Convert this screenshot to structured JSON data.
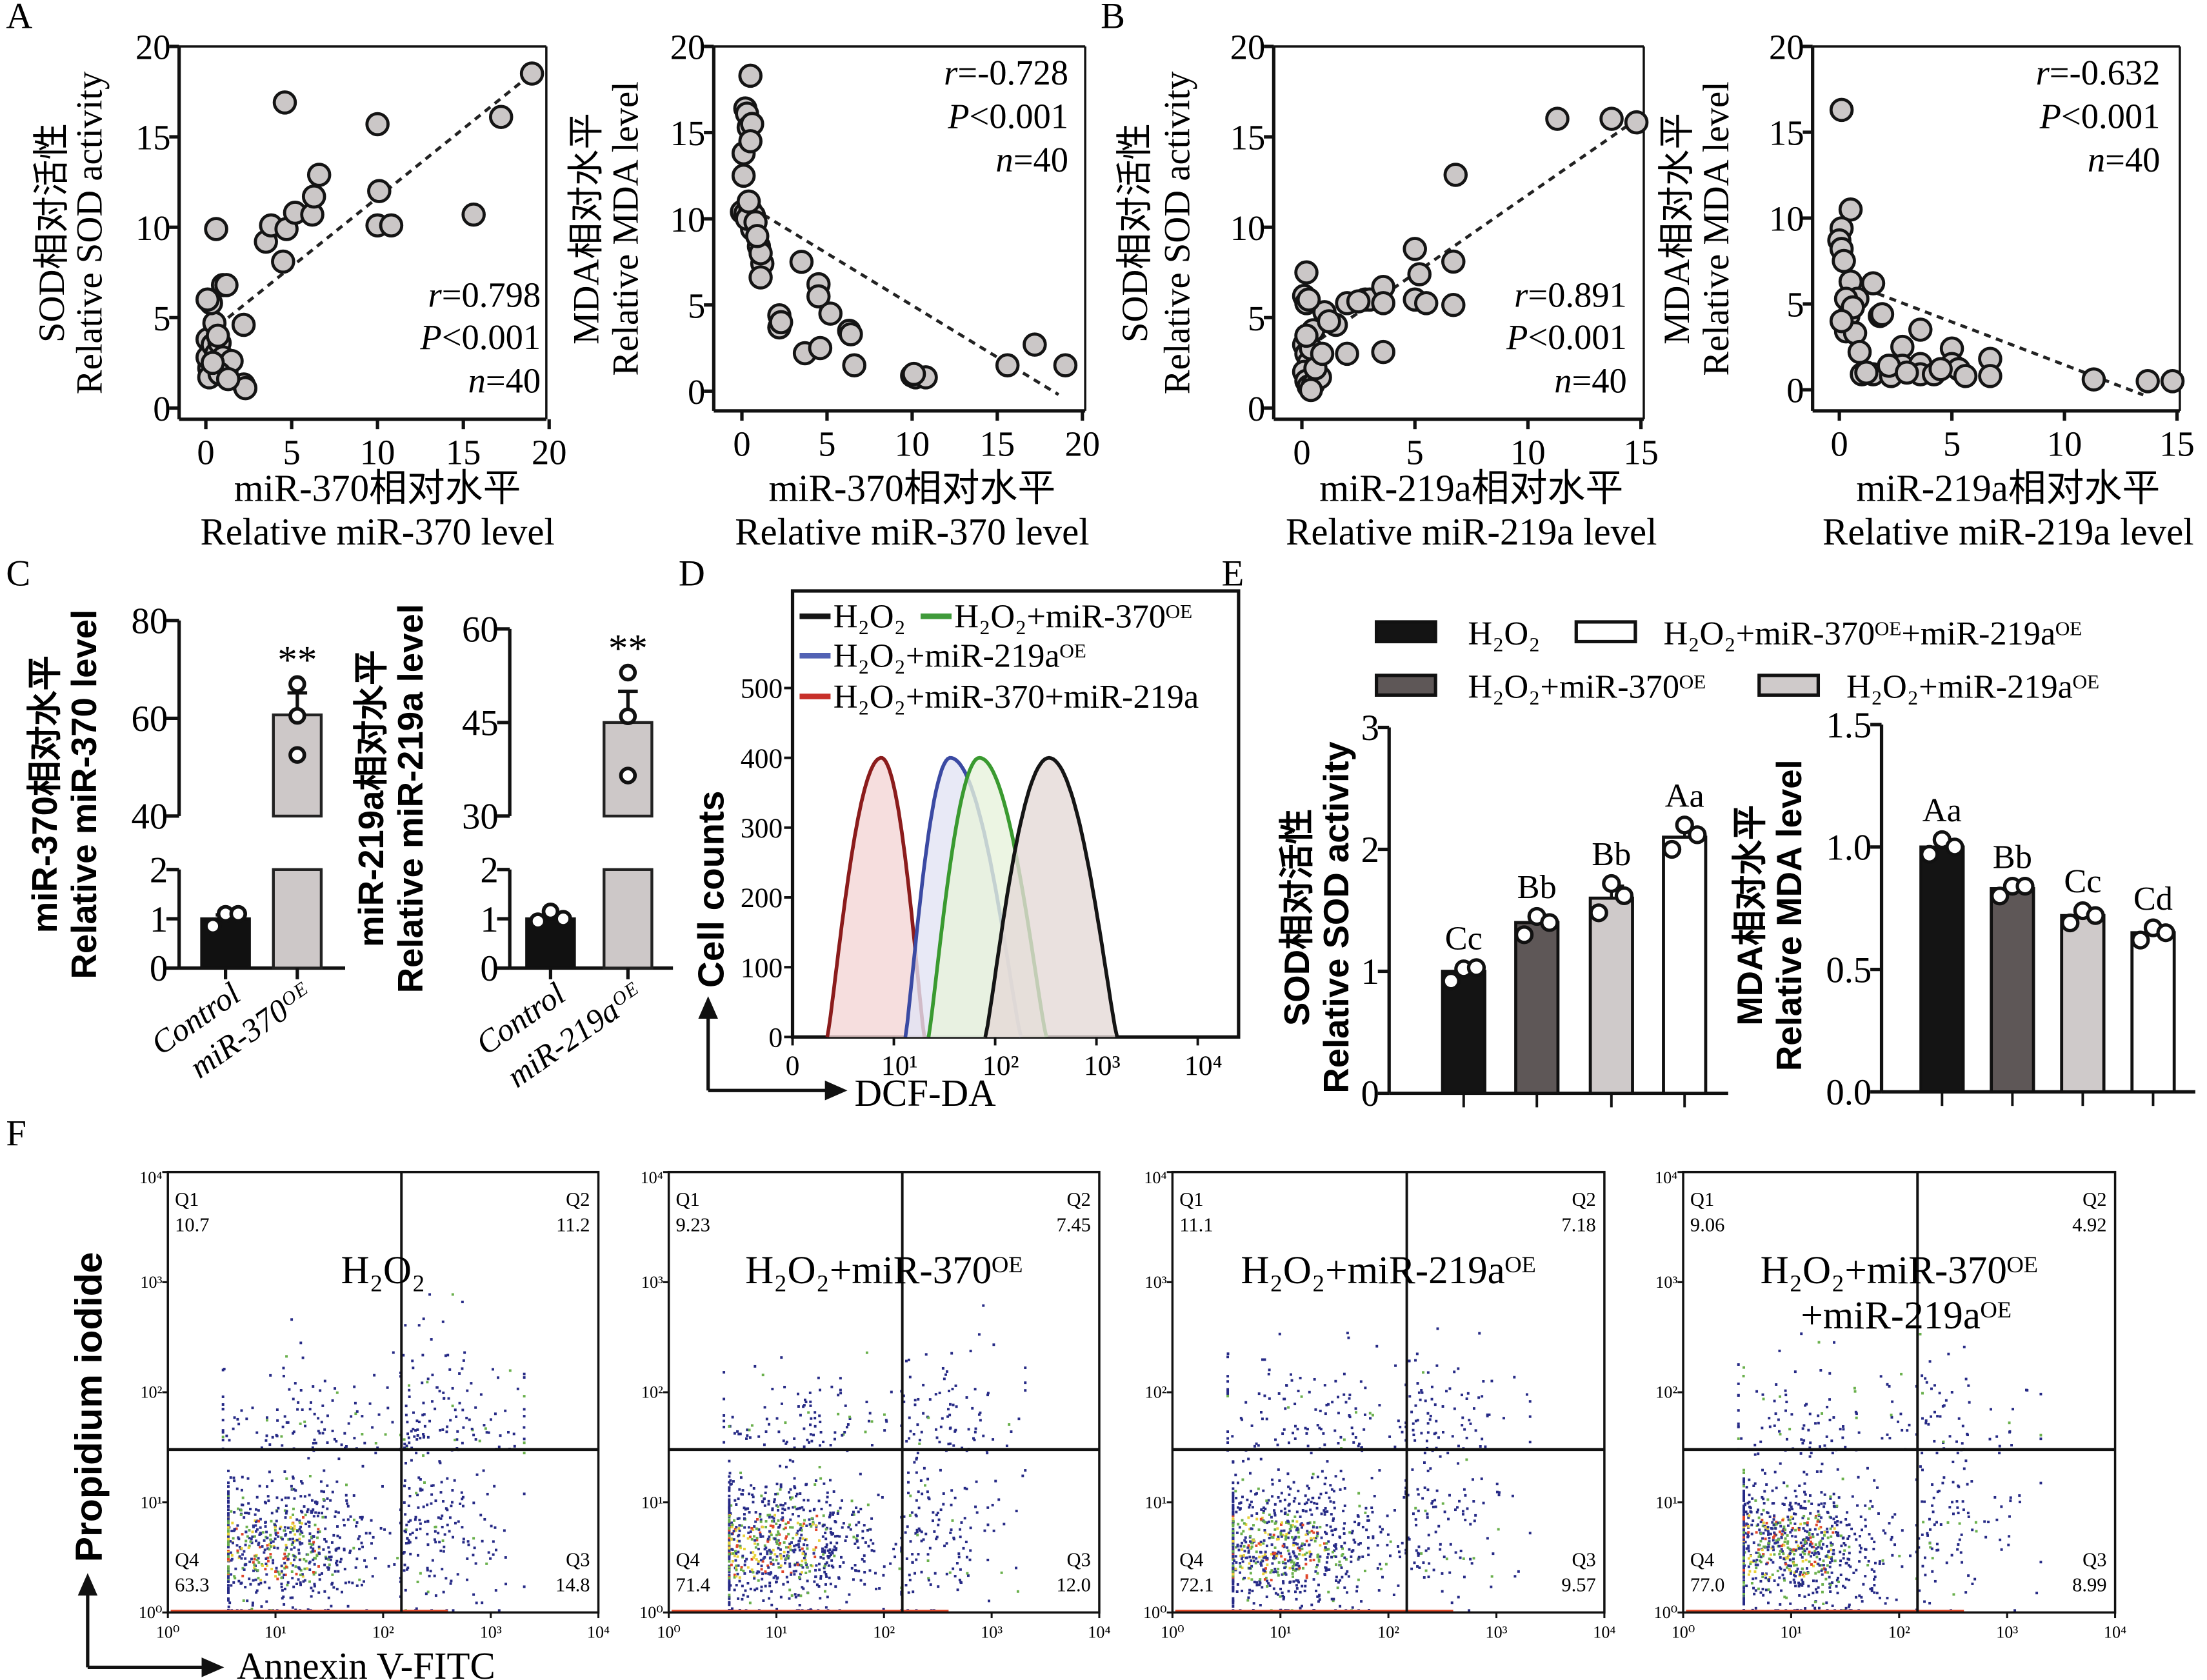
{
  "panel_labels": [
    "A",
    "B",
    "C",
    "D",
    "E",
    "F"
  ],
  "chart_data": [
    {
      "type": "scatter",
      "ylabel_cn": "SOD相对活性",
      "ylabel": "Relative SOD activity",
      "xlabel_cn": "miR-370相对水平",
      "xlabel": "Relative miR-370 level",
      "xlim": [
        0,
        20
      ],
      "ylim": [
        0,
        20
      ],
      "xticks": [
        0,
        5,
        10,
        15,
        20
      ],
      "yticks": [
        0,
        5,
        10,
        15,
        20
      ],
      "points": [
        [
          0.3,
          1.8
        ],
        [
          0.2,
          2.2
        ],
        [
          0.1,
          2.8
        ],
        [
          0.1,
          3.8
        ],
        [
          0.4,
          3.5
        ],
        [
          0.6,
          3.0
        ],
        [
          0.8,
          3.6
        ],
        [
          1.0,
          2.8
        ],
        [
          1.2,
          2.0
        ],
        [
          1.5,
          2.6
        ],
        [
          0.5,
          4.7
        ],
        [
          0.3,
          5.8
        ],
        [
          0.1,
          6.0
        ],
        [
          1.0,
          6.8
        ],
        [
          1.2,
          6.8
        ],
        [
          0.6,
          9.9
        ],
        [
          2.2,
          4.6
        ],
        [
          2.2,
          1.3
        ],
        [
          2.3,
          1.1
        ],
        [
          3.5,
          9.2
        ],
        [
          3.8,
          10.1
        ],
        [
          4.5,
          8.1
        ],
        [
          4.7,
          9.9
        ],
        [
          5.2,
          10.8
        ],
        [
          6.2,
          10.7
        ],
        [
          6.3,
          11.7
        ],
        [
          6.6,
          12.9
        ],
        [
          4.6,
          16.9
        ],
        [
          10.0,
          15.7
        ],
        [
          10.1,
          12.0
        ],
        [
          10.0,
          10.1
        ],
        [
          10.8,
          10.1
        ],
        [
          15.6,
          10.7
        ],
        [
          17.2,
          16.1
        ],
        [
          19.0,
          18.5
        ],
        [
          0.2,
          1.7
        ],
        [
          0.8,
          1.9
        ],
        [
          1.3,
          1.6
        ],
        [
          0.4,
          2.5
        ],
        [
          0.7,
          4.0
        ]
      ],
      "trend": [
        [
          1.3,
          5.0
        ],
        [
          19.0,
          18.5
        ]
      ],
      "stats": [
        {
          "sym": "r",
          "val": "=0.798"
        },
        {
          "sym": "P",
          "val": "<0.001"
        },
        {
          "sym": "n",
          "val": "=40"
        }
      ]
    },
    {
      "type": "scatter",
      "ylabel_cn": "MDA相对水平",
      "ylabel": "Relative MDA level",
      "xlabel_cn": "miR-370相对水平",
      "xlabel": "Relative miR-370 level",
      "xlim": [
        0,
        20
      ],
      "ylim": [
        0,
        20
      ],
      "xticks": [
        0,
        5,
        10,
        15,
        20
      ],
      "yticks": [
        0,
        5,
        10,
        15,
        20
      ],
      "points": [
        [
          0.5,
          18.3
        ],
        [
          0.2,
          16.4
        ],
        [
          0.3,
          16.1
        ],
        [
          0.4,
          15.3
        ],
        [
          0.6,
          15.5
        ],
        [
          0.1,
          13.8
        ],
        [
          0.1,
          12.5
        ],
        [
          0.0,
          10.4
        ],
        [
          0.2,
          10.3
        ],
        [
          0.5,
          10.5
        ],
        [
          0.7,
          10.2
        ],
        [
          0.6,
          9.4
        ],
        [
          1.0,
          8.4
        ],
        [
          1.2,
          7.4
        ],
        [
          1.1,
          6.6
        ],
        [
          2.2,
          4.4
        ],
        [
          2.2,
          3.7
        ],
        [
          3.5,
          7.5
        ],
        [
          4.5,
          6.2
        ],
        [
          4.5,
          5.5
        ],
        [
          5.2,
          4.5
        ],
        [
          3.7,
          2.2
        ],
        [
          4.6,
          2.5
        ],
        [
          6.3,
          3.5
        ],
        [
          6.6,
          1.5
        ],
        [
          10.0,
          0.9
        ],
        [
          10.2,
          0.8
        ],
        [
          10.8,
          0.8
        ],
        [
          15.6,
          1.5
        ],
        [
          17.2,
          2.7
        ],
        [
          19.0,
          1.5
        ],
        [
          0.3,
          10.0
        ],
        [
          0.8,
          9.8
        ],
        [
          1.1,
          8.0
        ],
        [
          0.4,
          11.0
        ],
        [
          2.3,
          4.0
        ],
        [
          6.4,
          3.3
        ],
        [
          10.1,
          1.0
        ],
        [
          0.9,
          9.0
        ],
        [
          0.5,
          14.5
        ]
      ],
      "trend": [
        [
          0.0,
          11.0
        ],
        [
          18.6,
          -0.2
        ]
      ],
      "stats": [
        {
          "sym": "r",
          "val": "=-0.728"
        },
        {
          "sym": "P",
          "val": "<0.001"
        },
        {
          "sym": "n",
          "val": "=40"
        }
      ]
    },
    {
      "type": "scatter",
      "ylabel_cn": "SOD相对活性",
      "ylabel": "Relative SOD activity",
      "xlabel_cn": "miR-219a相对水平",
      "xlabel": "Relative miR-219a level",
      "xlim": [
        0,
        15
      ],
      "ylim": [
        0,
        20
      ],
      "xticks": [
        0,
        5,
        10,
        15
      ],
      "yticks": [
        0,
        5,
        10,
        15,
        20
      ],
      "points": [
        [
          0.2,
          7.5
        ],
        [
          0.1,
          6.2
        ],
        [
          0.2,
          5.8
        ],
        [
          1.0,
          5.3
        ],
        [
          1.5,
          4.6
        ],
        [
          2.0,
          5.8
        ],
        [
          2.8,
          6.0
        ],
        [
          3.0,
          6.0
        ],
        [
          3.6,
          6.7
        ],
        [
          3.6,
          5.8
        ],
        [
          5.0,
          8.8
        ],
        [
          5.2,
          7.4
        ],
        [
          5.0,
          6.0
        ],
        [
          5.5,
          5.8
        ],
        [
          6.7,
          8.1
        ],
        [
          6.7,
          5.7
        ],
        [
          6.8,
          12.9
        ],
        [
          3.6,
          3.1
        ],
        [
          2.0,
          3.0
        ],
        [
          0.5,
          4.3
        ],
        [
          0.1,
          3.5
        ],
        [
          0.2,
          3.0
        ],
        [
          0.3,
          2.5
        ],
        [
          0.1,
          2.0
        ],
        [
          0.2,
          1.5
        ],
        [
          0.3,
          1.2
        ],
        [
          0.5,
          1.3
        ],
        [
          0.8,
          1.7
        ],
        [
          0.7,
          2.8
        ],
        [
          0.4,
          3.3
        ],
        [
          11.3,
          16.0
        ],
        [
          13.7,
          16.0
        ],
        [
          14.8,
          15.8
        ],
        [
          0.6,
          2.2
        ],
        [
          0.9,
          3.0
        ],
        [
          0.3,
          6.0
        ],
        [
          1.2,
          4.8
        ],
        [
          2.5,
          5.9
        ],
        [
          0.2,
          4.0
        ],
        [
          0.4,
          1.0
        ]
      ],
      "trend": [
        [
          0.8,
          3.8
        ],
        [
          14.5,
          15.7
        ]
      ],
      "stats": [
        {
          "sym": "r",
          "val": "=0.891"
        },
        {
          "sym": "P",
          "val": "<0.001"
        },
        {
          "sym": "n",
          "val": "=40"
        }
      ]
    },
    {
      "type": "scatter",
      "ylabel_cn": "MDA相对水平",
      "ylabel": "Relative MDA level",
      "xlabel_cn": "miR-219a相对水平",
      "xlabel": "Relative miR-219a level",
      "xlim": [
        0,
        15
      ],
      "ylim": [
        0,
        20
      ],
      "xticks": [
        0,
        5,
        10,
        15
      ],
      "yticks": [
        0,
        5,
        10,
        15,
        20
      ],
      "points": [
        [
          0.1,
          16.3
        ],
        [
          0.5,
          10.5
        ],
        [
          0.1,
          9.4
        ],
        [
          0.0,
          8.7
        ],
        [
          0.1,
          8.2
        ],
        [
          0.5,
          6.3
        ],
        [
          0.8,
          5.3
        ],
        [
          0.3,
          5.3
        ],
        [
          0.4,
          4.3
        ],
        [
          0.3,
          3.4
        ],
        [
          0.7,
          3.3
        ],
        [
          0.9,
          2.2
        ],
        [
          1.5,
          6.2
        ],
        [
          1.8,
          4.3
        ],
        [
          1.9,
          4.4
        ],
        [
          1.0,
          0.9
        ],
        [
          1.5,
          0.9
        ],
        [
          2.3,
          0.8
        ],
        [
          2.8,
          2.5
        ],
        [
          2.8,
          1.4
        ],
        [
          2.2,
          1.4
        ],
        [
          3.6,
          3.5
        ],
        [
          3.6,
          1.5
        ],
        [
          3.6,
          0.9
        ],
        [
          4.2,
          0.9
        ],
        [
          5.0,
          2.4
        ],
        [
          5.0,
          1.5
        ],
        [
          5.3,
          1.2
        ],
        [
          5.6,
          0.8
        ],
        [
          6.7,
          1.8
        ],
        [
          6.7,
          0.8
        ],
        [
          11.3,
          0.6
        ],
        [
          13.7,
          0.5
        ],
        [
          14.8,
          0.5
        ],
        [
          0.2,
          7.5
        ],
        [
          0.6,
          4.8
        ],
        [
          1.2,
          1.0
        ],
        [
          3.0,
          1.0
        ],
        [
          4.5,
          1.2
        ],
        [
          0.1,
          4.0
        ]
      ],
      "trend": [
        [
          1.7,
          5.6
        ],
        [
          13.5,
          -0.3
        ]
      ],
      "stats": [
        {
          "sym": "r",
          "val": "=-0.632"
        },
        {
          "sym": "P",
          "val": "<0.001"
        },
        {
          "sym": "n",
          "val": "=40"
        }
      ]
    },
    {
      "type": "bar",
      "ylabel_cn": "miR-370相对水平",
      "ylabel": "Relative miR-370 level",
      "categories": [
        "Control",
        "miR-370ᴼᴱ"
      ],
      "values": [
        1.0,
        60.7
      ],
      "errors": [
        0.08,
        4.5
      ],
      "replicates": [
        [
          0.85,
          1.1,
          1.1
        ],
        [
          52.5,
          60.5,
          67.0
        ]
      ],
      "significance": [
        "",
        "**"
      ],
      "broken_axis": {
        "lower": [
          0,
          2
        ],
        "upper": [
          40,
          80
        ]
      },
      "yticks_lower": [
        0,
        1,
        2
      ],
      "yticks_upper": [
        40,
        60,
        80
      ],
      "colors": [
        "#111111",
        "#cdc8c8"
      ]
    },
    {
      "type": "bar",
      "ylabel_cn": "miR-219a相对水平",
      "ylabel": "Relative miR-219a level",
      "categories": [
        "Control",
        "miR-219aᴼᴱ"
      ],
      "values": [
        1.0,
        45.0
      ],
      "errors": [
        0.06,
        5.0
      ],
      "replicates": [
        [
          0.95,
          1.15,
          1.0
        ],
        [
          36.5,
          46.0,
          53.0
        ]
      ],
      "significance": [
        "",
        "**"
      ],
      "broken_axis": {
        "lower": [
          0,
          2
        ],
        "upper": [
          30,
          60
        ]
      },
      "yticks_lower": [
        0,
        1,
        2
      ],
      "yticks_upper": [
        30,
        45,
        60
      ],
      "colors": [
        "#111111",
        "#cdc8c8"
      ]
    },
    {
      "type": "area",
      "ylabel": "Cell counts",
      "xlabel": "DCF-DA",
      "x_scale": "log",
      "xticks": [
        1,
        10,
        100,
        1000,
        10000
      ],
      "xtick_labels": [
        "0",
        "10¹",
        "10²",
        "10³",
        "10⁴"
      ],
      "yticks": [
        0,
        100,
        200,
        300,
        400,
        500
      ],
      "ylim": [
        0,
        640
      ],
      "series": [
        {
          "name": "H₂O₂+miR-370+miR-219a",
          "peak_x": 7.5,
          "peak_count": 400,
          "x_range": [
            2.2,
            20
          ],
          "line": "#8b1c1c",
          "legend_color": "#c8302a",
          "fill": "#f4d6d6"
        },
        {
          "name": "H₂O₂+miR-219aᴼᴱ",
          "peak_x": 36,
          "peak_count": 400,
          "x_range": [
            13,
            180
          ],
          "line": "#3b4aa3",
          "legend_color": "#5262b4",
          "fill": "#e2e3f4"
        },
        {
          "name": "H₂O₂+miR-370ᴼᴱ",
          "peak_x": 70,
          "peak_count": 400,
          "x_range": [
            22,
            320
          ],
          "line": "#3a9a30",
          "legend_color": "#3f9a3a",
          "fill": "#e7f2dc"
        },
        {
          "name": "H₂O₂",
          "peak_x": 340,
          "peak_count": 400,
          "x_range": [
            80,
            1600
          ],
          "line": "#151515",
          "legend_color": "#151515",
          "fill": "#e5d9d7"
        }
      ]
    },
    {
      "type": "bar",
      "ylabel_cn": "SOD相对活性",
      "ylabel": "Relative SOD activity",
      "legend": [
        "H₂O₂",
        "H₂O₂+miR-370ᴼᴱ",
        "H₂O₂+miR-219aᴼᴱ",
        "H₂O₂+miR-370ᴼᴱ+miR-219aᴼᴱ"
      ],
      "colors": [
        "#141414",
        "#5e5757",
        "#cfcaca",
        "#ffffff"
      ],
      "values": [
        1.0,
        1.4,
        1.6,
        2.1
      ],
      "errors": [
        0.05,
        0.06,
        0.1,
        0.06
      ],
      "replicates": [
        [
          0.92,
          1.02,
          1.03
        ],
        [
          1.3,
          1.45,
          1.4
        ],
        [
          1.48,
          1.72,
          1.62
        ],
        [
          2.0,
          2.2,
          2.12
        ]
      ],
      "letters": [
        "Cc",
        "Bb",
        "Bb",
        "Aa"
      ],
      "ylim": [
        0,
        3
      ],
      "yticks": [
        0,
        1,
        2,
        3
      ],
      "ytick_labels": [
        "0",
        "1",
        "2",
        "3"
      ]
    },
    {
      "type": "bar",
      "ylabel_cn": "MDA相对水平",
      "ylabel": "Relative MDA level",
      "colors": [
        "#141414",
        "#5e5757",
        "#cfcaca",
        "#ffffff"
      ],
      "values": [
        1.0,
        0.83,
        0.72,
        0.65
      ],
      "errors": [
        0.03,
        0.02,
        0.03,
        0.02
      ],
      "replicates": [
        [
          0.97,
          1.03,
          1.0
        ],
        [
          0.8,
          0.84,
          0.84
        ],
        [
          0.69,
          0.74,
          0.72
        ],
        [
          0.62,
          0.67,
          0.65
        ]
      ],
      "letters": [
        "Aa",
        "Bb",
        "Cc",
        "Cd"
      ],
      "ylim": [
        0,
        1.5
      ],
      "yticks": [
        0,
        0.5,
        1.0,
        1.5
      ],
      "ytick_labels": [
        "0.0",
        "0.5",
        "1.0",
        "1.5"
      ]
    },
    {
      "type": "scatter",
      "title": "H₂O₂",
      "ylabel": "Propidium iodide",
      "xlabel": "Annexin V-FITC",
      "x_scale": "log",
      "y_scale": "log",
      "tick_labels": [
        "10⁰",
        "10¹",
        "10²",
        "10³",
        "10⁴"
      ],
      "quadrants": [
        {
          "name": "Q1",
          "value": "10.7"
        },
        {
          "name": "Q2",
          "value": "11.2"
        },
        {
          "name": "Q3",
          "value": "14.8"
        },
        {
          "name": "Q4",
          "value": "63.3"
        }
      ]
    },
    {
      "type": "scatter",
      "title": "H₂O₂+miR-370ᴼᴱ",
      "x_scale": "log",
      "y_scale": "log",
      "tick_labels": [
        "10⁰",
        "10¹",
        "10²",
        "10³",
        "10⁴"
      ],
      "quadrants": [
        {
          "name": "Q1",
          "value": "9.23"
        },
        {
          "name": "Q2",
          "value": "7.45"
        },
        {
          "name": "Q3",
          "value": "12.0"
        },
        {
          "name": "Q4",
          "value": "71.4"
        }
      ]
    },
    {
      "type": "scatter",
      "title": "H₂O₂+miR-219aᴼᴱ",
      "x_scale": "log",
      "y_scale": "log",
      "tick_labels": [
        "10⁰",
        "10¹",
        "10²",
        "10³",
        "10⁴"
      ],
      "quadrants": [
        {
          "name": "Q1",
          "value": "11.1"
        },
        {
          "name": "Q2",
          "value": "7.18"
        },
        {
          "name": "Q3",
          "value": "9.57"
        },
        {
          "name": "Q4",
          "value": "72.1"
        }
      ]
    },
    {
      "type": "scatter",
      "title": "H₂O₂+miR-370ᴼᴱ",
      "title_line2": "+miR-219aᴼᴱ",
      "x_scale": "log",
      "y_scale": "log",
      "tick_labels": [
        "10⁰",
        "10¹",
        "10²",
        "10³",
        "10⁴"
      ],
      "quadrants": [
        {
          "name": "Q1",
          "value": "9.06"
        },
        {
          "name": "Q2",
          "value": "4.92"
        },
        {
          "name": "Q3",
          "value": "8.99"
        },
        {
          "name": "Q4",
          "value": "77.0"
        }
      ]
    }
  ]
}
